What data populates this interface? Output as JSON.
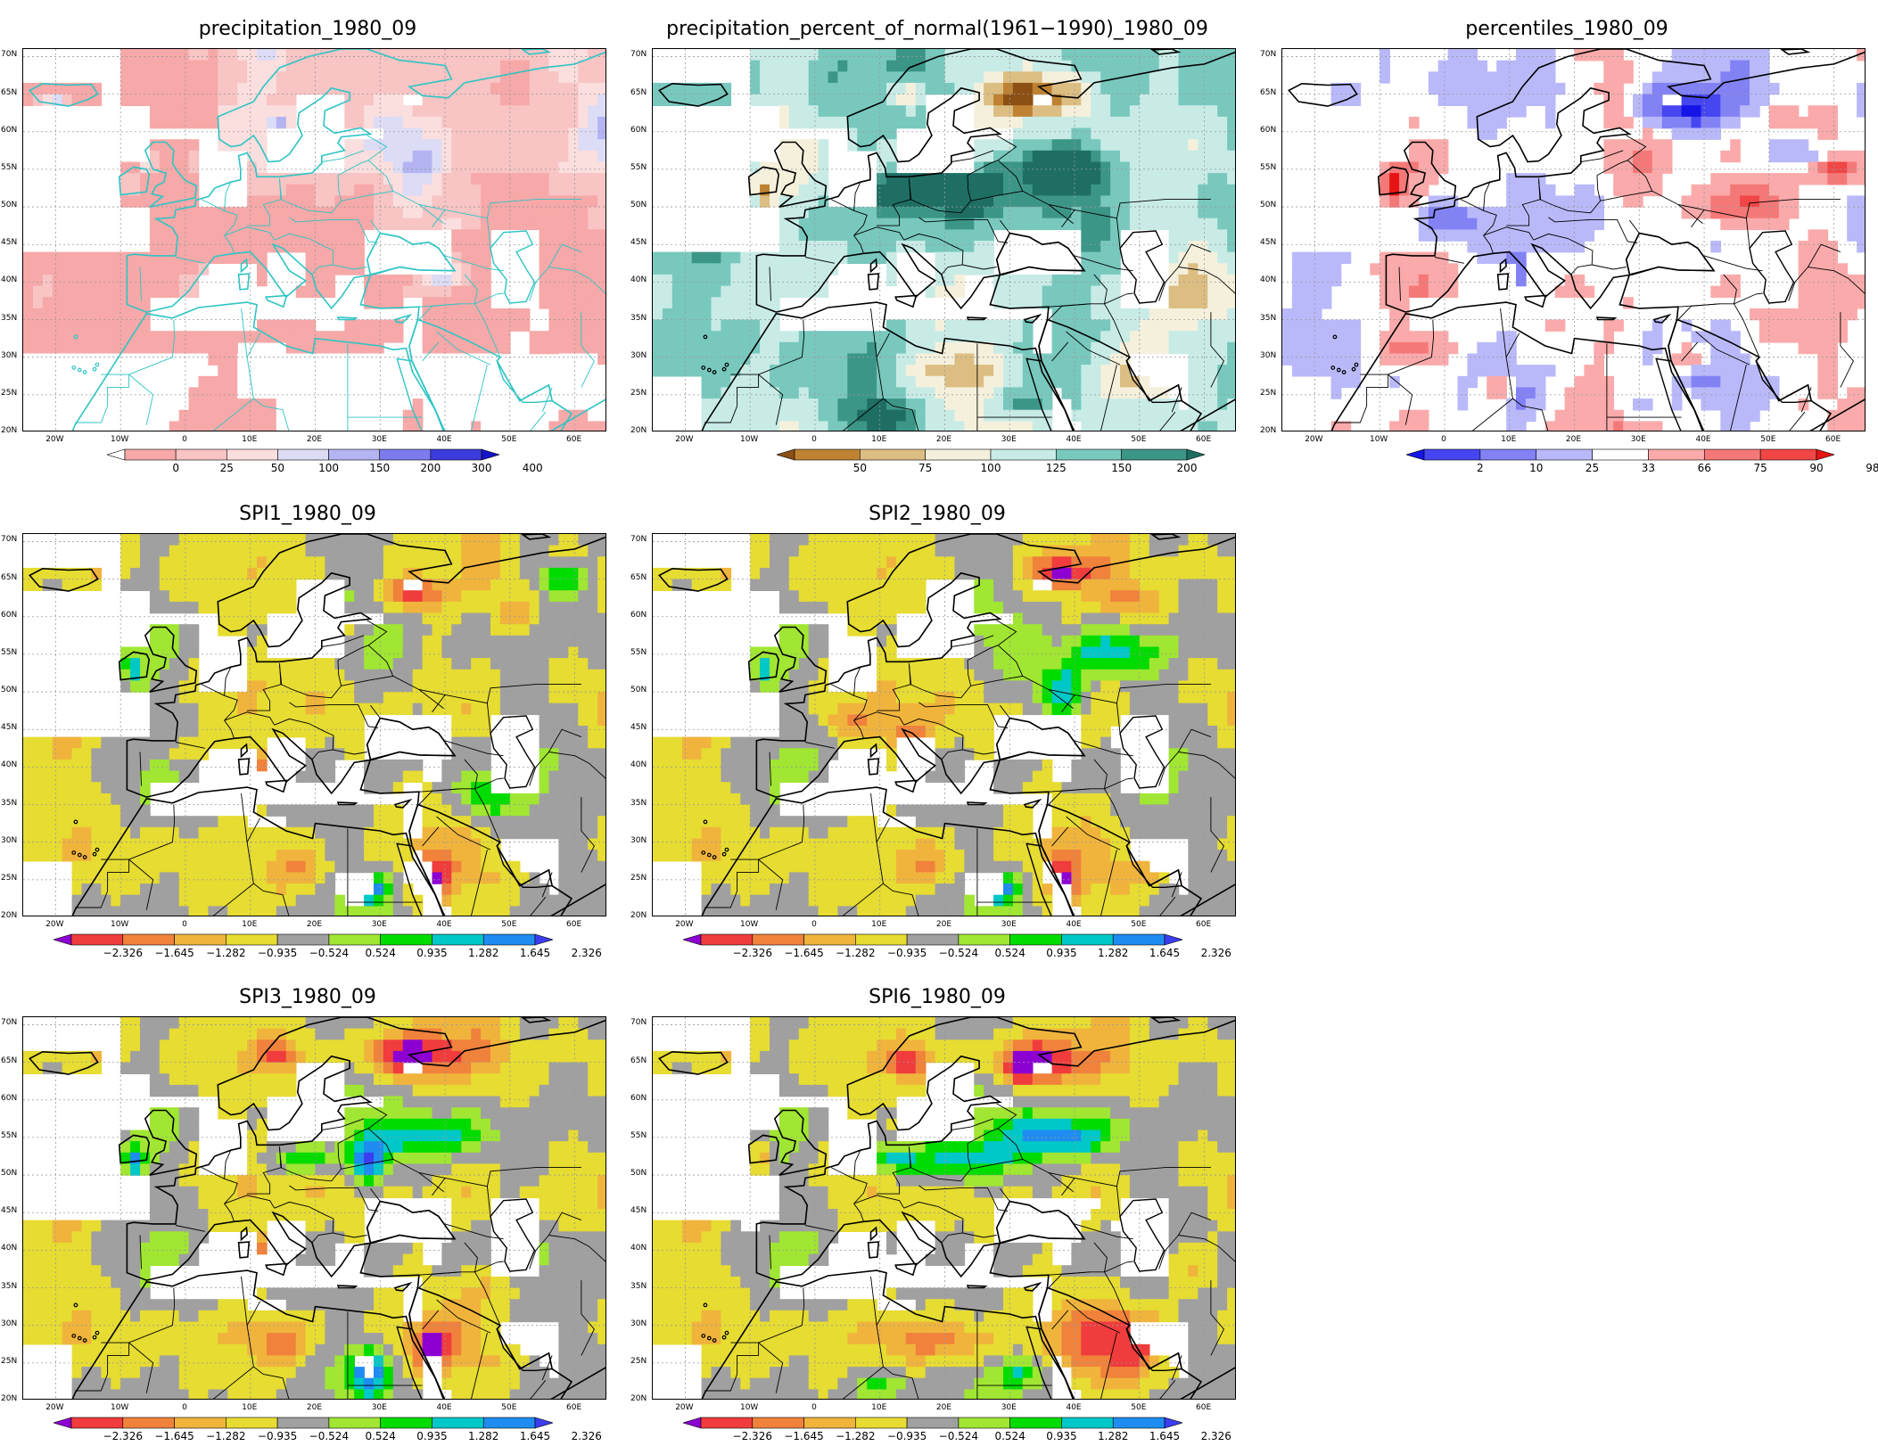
{
  "panels": [
    {
      "id": "precip",
      "title": "precipitation_1980_09",
      "scheme": "precip",
      "coast": "#2ec4c4",
      "colorbar": {
        "labels": [
          "0",
          "25",
          "50",
          "100",
          "150",
          "200",
          "300",
          "400"
        ],
        "colors": [
          "#ffffff",
          "#f7a8a8",
          "#f8c4c4",
          "#fbdede",
          "#dcdcf6",
          "#b4b4f2",
          "#7c7cee",
          "#3c3cdc",
          "#1414c8"
        ]
      }
    },
    {
      "id": "pctnorm",
      "title": "precipitation_percent_of_normal(1961−1990)_1980_09",
      "scheme": "pct",
      "coast": "#000000",
      "colorbar": {
        "labels": [
          "50",
          "75",
          "100",
          "125",
          "150",
          "200"
        ],
        "colors": [
          "#8c5014",
          "#be8232",
          "#dcbe82",
          "#f5f0dc",
          "#c8ebe6",
          "#78c8be",
          "#3c9688",
          "#1e6e64"
        ]
      }
    },
    {
      "id": "pctl",
      "title": "percentiles_1980_09",
      "scheme": "pctl",
      "coast": "#000000",
      "colorbar": {
        "labels": [
          "2",
          "10",
          "25",
          "33",
          "66",
          "75",
          "90",
          "98"
        ],
        "colors": [
          "#1414e6",
          "#4646f0",
          "#8282f5",
          "#b9b9fa",
          "#ffffff",
          "#faaaaa",
          "#f57878",
          "#f04646",
          "#e61414"
        ]
      }
    },
    {
      "id": "spi1",
      "title": "SPI1_1980_09",
      "scheme": "spi1",
      "coast": "#000000",
      "colorbar": {
        "labels": [
          "−2.326",
          "−1.645",
          "−1.282",
          "−0.935",
          "−0.524",
          "0.524",
          "0.935",
          "1.282",
          "1.645",
          "2.326"
        ],
        "colors": [
          "#8c00d2",
          "#f03c3c",
          "#f0823c",
          "#f0b43c",
          "#e6dc32",
          "#a0a0a0",
          "#a0e632",
          "#00dc00",
          "#00c8c8",
          "#1e8cf0",
          "#3c3cf0"
        ]
      }
    },
    {
      "id": "spi2",
      "title": "SPI2_1980_09",
      "scheme": "spi2",
      "coast": "#000000",
      "colorbar": {
        "labels": [
          "−2.326",
          "−1.645",
          "−1.282",
          "−0.935",
          "−0.524",
          "0.524",
          "0.935",
          "1.282",
          "1.645",
          "2.326"
        ],
        "colors": [
          "#8c00d2",
          "#f03c3c",
          "#f0823c",
          "#f0b43c",
          "#e6dc32",
          "#a0a0a0",
          "#a0e632",
          "#00dc00",
          "#00c8c8",
          "#1e8cf0",
          "#3c3cf0"
        ]
      }
    },
    {
      "id": "spi3",
      "title": "SPI3_1980_09",
      "scheme": "spi3",
      "coast": "#000000",
      "colorbar": {
        "labels": [
          "−2.326",
          "−1.645",
          "−1.282",
          "−0.935",
          "−0.524",
          "0.524",
          "0.935",
          "1.282",
          "1.645",
          "2.326"
        ],
        "colors": [
          "#8c00d2",
          "#f03c3c",
          "#f0823c",
          "#f0b43c",
          "#e6dc32",
          "#a0a0a0",
          "#a0e632",
          "#00dc00",
          "#00c8c8",
          "#1e8cf0",
          "#3c3cf0"
        ]
      }
    },
    {
      "id": "spi6",
      "title": "SPI6_1980_09",
      "scheme": "spi6",
      "coast": "#000000",
      "colorbar": {
        "labels": [
          "−2.326",
          "−1.645",
          "−1.282",
          "−0.935",
          "−0.524",
          "0.524",
          "0.935",
          "1.282",
          "1.645",
          "2.326"
        ],
        "colors": [
          "#8c00d2",
          "#f03c3c",
          "#f0823c",
          "#f0b43c",
          "#e6dc32",
          "#a0a0a0",
          "#a0e632",
          "#00dc00",
          "#00c8c8",
          "#1e8cf0",
          "#3c3cf0"
        ]
      }
    }
  ],
  "lat_labels": [
    "70N",
    "65N",
    "60N",
    "55N",
    "50N",
    "45N",
    "40N",
    "35N",
    "30N",
    "25N",
    "20N"
  ],
  "lon_labels": [
    "20W",
    "10W",
    "0",
    "10E",
    "20E",
    "30E",
    "40E",
    "50E",
    "60E"
  ]
}
